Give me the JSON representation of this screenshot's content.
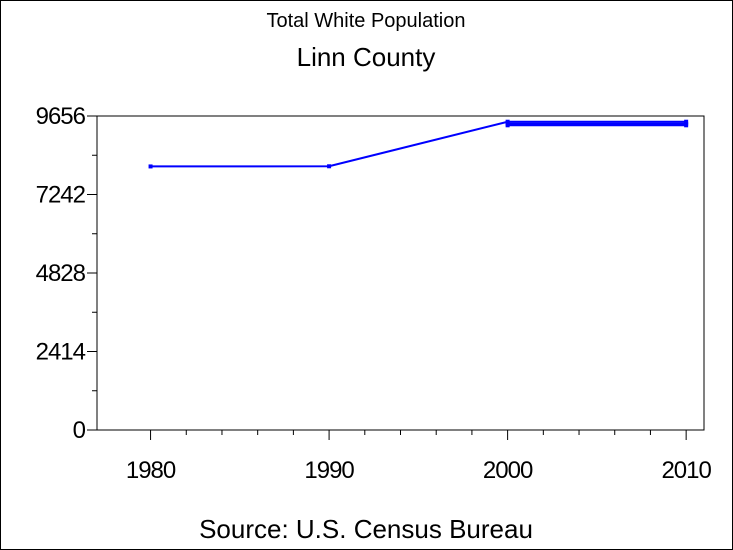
{
  "chart_data": {
    "type": "line",
    "title": "Linn County",
    "subtitle": "Total White Population",
    "source": "Source: U.S. Census Bureau",
    "xlabel": "",
    "ylabel": "",
    "x_ticks": [
      "1980",
      "1990",
      "2000",
      "2010"
    ],
    "y_ticks": [
      "0",
      "2414",
      "4828",
      "7242",
      "9656"
    ],
    "xlim": [
      1977,
      2011
    ],
    "ylim": [
      0,
      9656
    ],
    "grid": false,
    "legend": "none",
    "series": [
      {
        "x": [
          1980,
          1990,
          2000,
          2010
        ],
        "values": [
          8105,
          8110,
          9480,
          9480
        ]
      },
      {
        "x": [
          2000,
          2010
        ],
        "values": [
          9420,
          9420
        ]
      },
      {
        "x": [
          2000,
          2010
        ],
        "values": [
          9370,
          9370
        ]
      }
    ],
    "color": "#0000ff"
  }
}
